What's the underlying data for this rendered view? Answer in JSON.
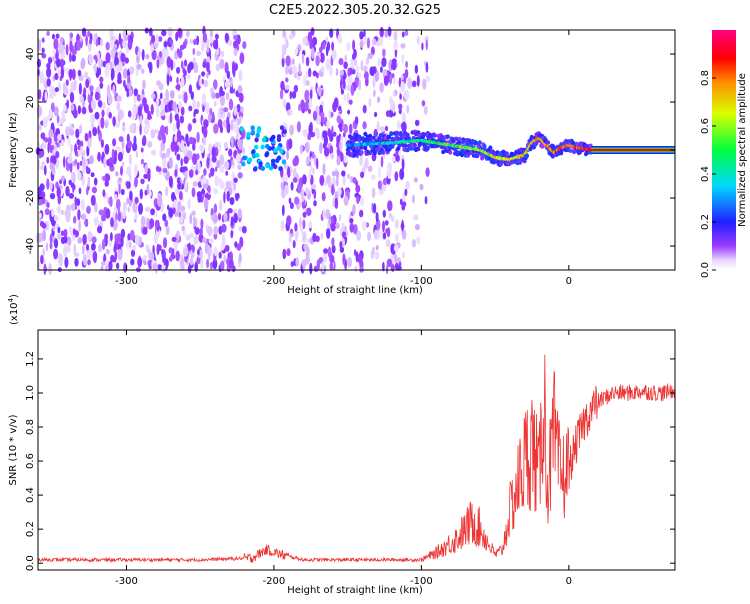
{
  "title": "C2E5.2022.305.20.32.G25",
  "chart_data": [
    {
      "type": "heatmap",
      "xlabel": "Height of straight line (km)",
      "ylabel": "Frequency (Hz)",
      "xlim": [
        -360,
        72
      ],
      "ylim": [
        -50,
        50
      ],
      "xticks": [
        -300,
        -200,
        -100,
        0
      ],
      "yticks": [
        -40,
        -20,
        0,
        20,
        40
      ],
      "colorbar": {
        "label": "Normalized spectral amplitude",
        "range": [
          0,
          1
        ],
        "ticks": [
          0.0,
          0.2,
          0.4,
          0.6,
          0.8
        ],
        "colormap": "rainbow (white-violet-blue-cyan-green-yellow-red-magenta)"
      },
      "regions": [
        {
          "x": [
            -360,
            -220
          ],
          "description": "scattered violet noise across all frequencies",
          "amplitude": 0.05
        },
        {
          "x": [
            -220,
            -195
          ],
          "description": "blue/cyan cluster near 0 Hz",
          "amplitude": 0.3
        },
        {
          "x": [
            -195,
            -110
          ],
          "description": "scattered violet noise",
          "amplitude": 0.05
        },
        {
          "x": [
            -150,
            15
          ],
          "description": "signal band near 0 Hz, rising from cyan to red",
          "amplitude": 0.6
        },
        {
          "x": [
            15,
            72
          ],
          "description": "steady carrier line at 0 Hz",
          "amplitude": 0.95
        }
      ],
      "signal_track": {
        "x": [
          -150,
          -120,
          -100,
          -80,
          -60,
          -50,
          -40,
          -30,
          -25,
          -20,
          -15,
          -10,
          -5,
          0,
          5,
          15,
          72
        ],
        "freq": [
          2,
          3,
          4,
          2,
          0,
          -3,
          -4,
          -2,
          3,
          5,
          2,
          -1,
          1,
          2,
          1,
          0,
          0
        ]
      }
    },
    {
      "type": "line",
      "xlabel": "Height of straight line (km)",
      "ylabel": "SNR (10 * v/v)",
      "yscale_label": "(x10",
      "yscale_exp": "4",
      "xlim": [
        -360,
        72
      ],
      "ylim": [
        -0.04,
        1.37
      ],
      "xticks": [
        -300,
        -200,
        -100,
        0
      ],
      "yticks": [
        0.0,
        0.2,
        0.4,
        0.6,
        0.8,
        1.0,
        1.2
      ],
      "color": "#ee3333",
      "series": [
        {
          "x": [
            -360,
            -300,
            -250,
            -215,
            -205,
            -195,
            -180,
            -150,
            -120,
            -100,
            -90,
            -80,
            -75,
            -70,
            -65,
            -60,
            -55,
            -50,
            -45,
            -40,
            -35,
            -30,
            -25,
            -20,
            -17,
            -15,
            -12,
            -10,
            -8,
            -5,
            0,
            5,
            10,
            15,
            20,
            30,
            40,
            50,
            60,
            65,
            72
          ],
          "y": [
            0.02,
            0.02,
            0.02,
            0.03,
            0.08,
            0.05,
            0.02,
            0.02,
            0.02,
            0.02,
            0.06,
            0.12,
            0.15,
            0.2,
            0.25,
            0.2,
            0.12,
            0.05,
            0.08,
            0.3,
            0.45,
            0.6,
            0.7,
            0.5,
            1.1,
            0.45,
            0.6,
            0.75,
            0.6,
            0.5,
            0.55,
            0.7,
            0.82,
            0.9,
            0.95,
            1.0,
            1.0,
            1.01,
            1.0,
            1.0,
            1.02
          ]
        }
      ]
    }
  ]
}
